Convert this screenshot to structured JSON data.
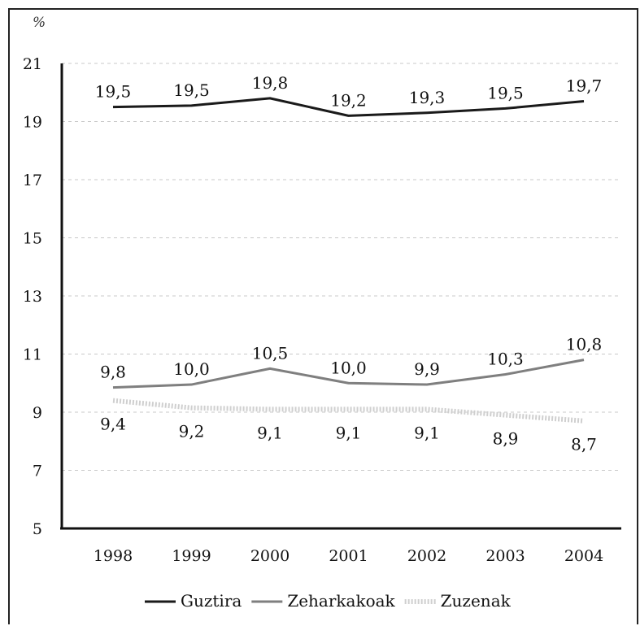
{
  "chart_data": {
    "type": "line",
    "unit_label": "%",
    "categories": [
      "1998",
      "1999",
      "2000",
      "2001",
      "2002",
      "2003",
      "2004"
    ],
    "ylim": [
      5,
      21
    ],
    "yticks": [
      "5",
      "7",
      "9",
      "11",
      "13",
      "15",
      "17",
      "19",
      "21"
    ],
    "grid": true,
    "legend_position": "bottom",
    "series": [
      {
        "name": "Guztira",
        "values": [
          19.5,
          19.55,
          19.8,
          19.2,
          19.3,
          19.45,
          19.7
        ],
        "labels": [
          "19,5",
          "19,5",
          "19,8",
          "19,2",
          "19,3",
          "19,5",
          "19,7"
        ],
        "label_position": "above",
        "color": "#1a1a1a",
        "style": "solid"
      },
      {
        "name": "Zeharkakoak",
        "values": [
          9.85,
          9.95,
          10.5,
          10.0,
          9.95,
          10.3,
          10.8
        ],
        "labels": [
          "9,8",
          "10,0",
          "10,5",
          "10,0",
          "9,9",
          "10,3",
          "10,8"
        ],
        "label_position": "above",
        "color": "#7f7f7f",
        "style": "solid"
      },
      {
        "name": "Zuzenak",
        "values": [
          9.4,
          9.15,
          9.1,
          9.1,
          9.1,
          8.9,
          8.7
        ],
        "labels": [
          "9,4",
          "9,2",
          "9,1",
          "9,1",
          "9,1",
          "8,9",
          "8,7"
        ],
        "label_position": "below",
        "color": "#cfcfcf",
        "style": "dotted"
      }
    ]
  }
}
